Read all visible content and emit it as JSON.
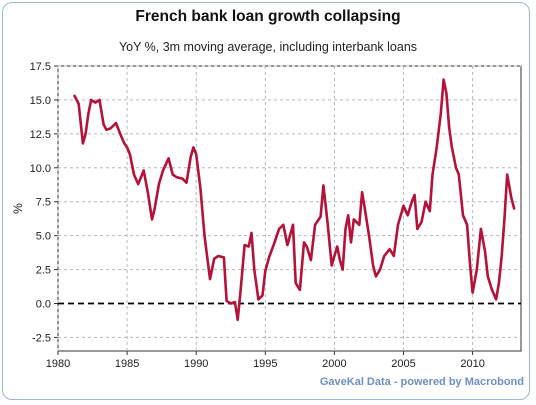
{
  "chart_data": {
    "type": "line",
    "title": "French bank loan growth collapsing",
    "subtitle": "YoY %, 3m moving average, including interbank loans",
    "xlabel": "",
    "ylabel": "%",
    "xlim": [
      1980,
      2013.5
    ],
    "ylim": [
      -3.5,
      17.5
    ],
    "x_ticks": [
      "1980",
      "1985",
      "1990",
      "1995",
      "2000",
      "2005",
      "2010"
    ],
    "y_ticks": [
      "17.5",
      "15.0",
      "12.5",
      "10.0",
      "7.5",
      "5.0",
      "2.5",
      "0.0",
      "-2.5"
    ],
    "grid": true,
    "zero_line": "dashed",
    "series": [
      {
        "color": "#b5123a",
        "x": [
          1981.2,
          1981.5,
          1981.8,
          1982.0,
          1982.2,
          1982.4,
          1982.7,
          1983.0,
          1983.3,
          1983.5,
          1983.8,
          1984.2,
          1984.5,
          1984.8,
          1985.0,
          1985.2,
          1985.5,
          1985.8,
          1986.2,
          1986.5,
          1986.8,
          1987.0,
          1987.3,
          1987.6,
          1988.0,
          1988.3,
          1988.6,
          1989.0,
          1989.3,
          1989.6,
          1989.8,
          1990.0,
          1990.3,
          1990.6,
          1991.0,
          1991.3,
          1991.6,
          1992.0,
          1992.2,
          1992.5,
          1992.8,
          1993.0,
          1993.2,
          1993.5,
          1993.8,
          1994.0,
          1994.2,
          1994.5,
          1994.8,
          1995.0,
          1995.3,
          1995.6,
          1996.0,
          1996.3,
          1996.6,
          1997.0,
          1997.2,
          1997.5,
          1997.8,
          1998.0,
          1998.3,
          1998.6,
          1999.0,
          1999.2,
          1999.5,
          1999.8,
          2000.0,
          2000.2,
          2000.4,
          2000.6,
          2000.8,
          2001.0,
          2001.2,
          2001.4,
          2001.6,
          2001.8,
          2002.0,
          2002.2,
          2002.5,
          2002.8,
          2003.0,
          2003.3,
          2003.6,
          2004.0,
          2004.3,
          2004.6,
          2005.0,
          2005.3,
          2005.6,
          2005.8,
          2006.0,
          2006.3,
          2006.6,
          2006.9,
          2007.1,
          2007.4,
          2007.7,
          2007.9,
          2008.1,
          2008.3,
          2008.5,
          2008.8,
          2009.0,
          2009.3,
          2009.6,
          2009.8,
          2010.0,
          2010.3,
          2010.6,
          2010.9,
          2011.1,
          2011.4,
          2011.7,
          2011.9,
          2012.1,
          2012.3,
          2012.5,
          2012.8,
          2013.0
        ],
        "values": [
          15.3,
          14.7,
          11.8,
          12.5,
          14.0,
          15.0,
          14.8,
          15.0,
          13.2,
          12.8,
          12.9,
          13.3,
          12.5,
          11.8,
          11.5,
          11.0,
          9.5,
          8.8,
          9.8,
          8.2,
          6.2,
          7.0,
          8.8,
          9.8,
          10.7,
          9.5,
          9.3,
          9.2,
          8.9,
          10.8,
          11.5,
          11.0,
          8.5,
          5.0,
          1.8,
          3.3,
          3.5,
          3.4,
          0.2,
          0.0,
          0.1,
          -1.2,
          0.8,
          4.3,
          4.2,
          5.2,
          2.5,
          0.3,
          0.6,
          2.4,
          3.5,
          4.3,
          5.5,
          5.8,
          4.3,
          5.8,
          1.5,
          1.0,
          4.5,
          4.2,
          3.2,
          5.8,
          6.4,
          8.7,
          6.0,
          2.8,
          3.5,
          4.2,
          3.2,
          2.5,
          5.5,
          6.5,
          4.5,
          6.2,
          6.0,
          5.8,
          8.2,
          7.0,
          5.0,
          2.8,
          2.0,
          2.5,
          3.5,
          4.0,
          3.5,
          5.8,
          7.2,
          6.5,
          7.5,
          8.0,
          5.5,
          6.0,
          7.5,
          6.8,
          9.5,
          11.5,
          14.0,
          16.5,
          15.5,
          13.0,
          11.5,
          10.0,
          9.5,
          6.5,
          5.8,
          3.0,
          0.8,
          2.5,
          5.5,
          3.8,
          2.0,
          1.0,
          0.3,
          1.5,
          3.5,
          6.2,
          9.5,
          7.8,
          7.0
        ]
      }
    ]
  },
  "credit": "GaveKal Data - powered by Macrobond"
}
